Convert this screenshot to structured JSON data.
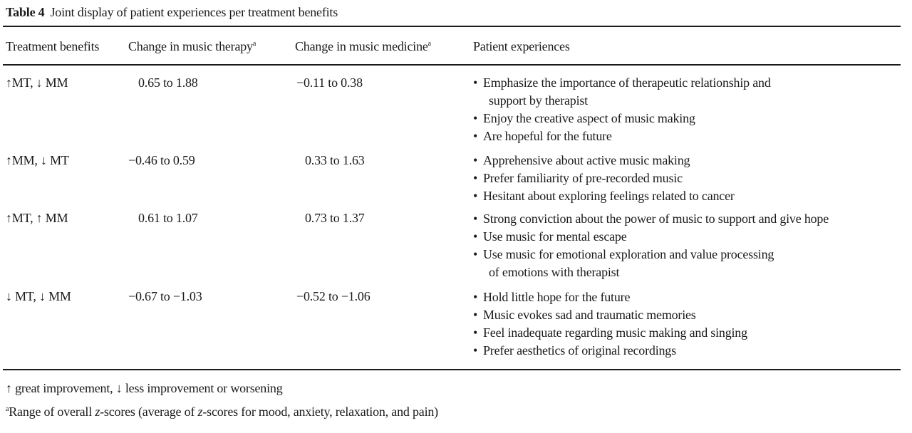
{
  "caption": {
    "label": "Table 4",
    "title": "Joint display of patient experiences per treatment benefits"
  },
  "headers": {
    "col1": "Treatment benefits",
    "col2": "Change in music therapy",
    "col2_sup": "a",
    "col3": "Change in music medicine",
    "col3_sup": "a",
    "col4": "Patient experiences"
  },
  "rows": [
    {
      "benefit": "↑MT, ↓ MM",
      "therapy": "0.65 to 1.88",
      "medicine": "−0.11 to 0.38",
      "experiences": [
        [
          "Emphasize the importance of therapeutic relationship and",
          "support by therapist"
        ],
        [
          "Enjoy the creative aspect of music making"
        ],
        [
          "Are hopeful for the future"
        ]
      ]
    },
    {
      "benefit": "↑MM, ↓ MT",
      "therapy": "−0.46 to 0.59",
      "medicine": "0.33 to 1.63",
      "experiences": [
        [
          "Apprehensive about active music making"
        ],
        [
          "Prefer familiarity of pre-recorded music"
        ],
        [
          "Hesitant about exploring feelings related to cancer"
        ]
      ]
    },
    {
      "benefit": "↑MT, ↑ MM",
      "therapy": "0.61 to 1.07",
      "medicine": "0.73 to 1.37",
      "experiences": [
        [
          "Strong conviction about the power of music to support and give hope"
        ],
        [
          "Use music for mental escape"
        ],
        [
          "Use music for emotional exploration and value processing",
          "of emotions with therapist"
        ]
      ]
    },
    {
      "benefit": "↓ MT, ↓ MM",
      "therapy": "−0.67 to −1.03",
      "medicine": "−0.52 to −1.06",
      "experiences": [
        [
          "Hold little hope for the future"
        ],
        [
          "Music evokes sad and traumatic memories"
        ],
        [
          "Feel inadequate regarding music making and singing"
        ],
        [
          "Prefer aesthetics of original recordings"
        ]
      ]
    }
  ],
  "footnotes": {
    "legend": "↑ great improvement, ↓ less improvement or worsening",
    "note_sup": "a",
    "note_pre": "Range of overall ",
    "note_z1": "z",
    "note_mid": "-scores (average of ",
    "note_z2": "z",
    "note_post": "-scores for mood, anxiety, relaxation, and pain)"
  }
}
